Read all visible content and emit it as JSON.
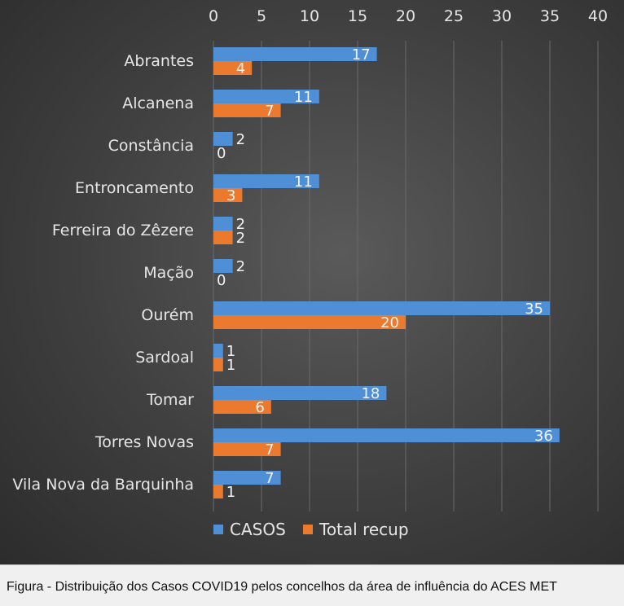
{
  "chart_data": {
    "type": "bar",
    "orientation": "horizontal",
    "categories": [
      "Abrantes",
      "Alcanena",
      "Constância",
      "Entroncamento",
      "Ferreira do Zêzere",
      "Mação",
      "Ourém",
      "Sardoal",
      "Tomar",
      "Torres Novas",
      "Vila Nova da Barquinha"
    ],
    "series": [
      {
        "name": "CASOS",
        "color": "#4f8fd6",
        "values": [
          17,
          11,
          2,
          11,
          2,
          2,
          35,
          1,
          18,
          36,
          7
        ]
      },
      {
        "name": "Total recup",
        "color": "#ec7a2e",
        "values": [
          4,
          7,
          0,
          3,
          2,
          0,
          20,
          1,
          6,
          7,
          1
        ]
      }
    ],
    "xlim": [
      0,
      40
    ],
    "xticks": [
      "0",
      "5",
      "10",
      "15",
      "20",
      "25",
      "30",
      "35",
      "40"
    ],
    "axis_position": "top",
    "legend_position": "bottom",
    "grid": true
  },
  "caption": "Figura -  Distribuição dos Casos COVID19 pelos concelhos da área de influência do ACES MET"
}
